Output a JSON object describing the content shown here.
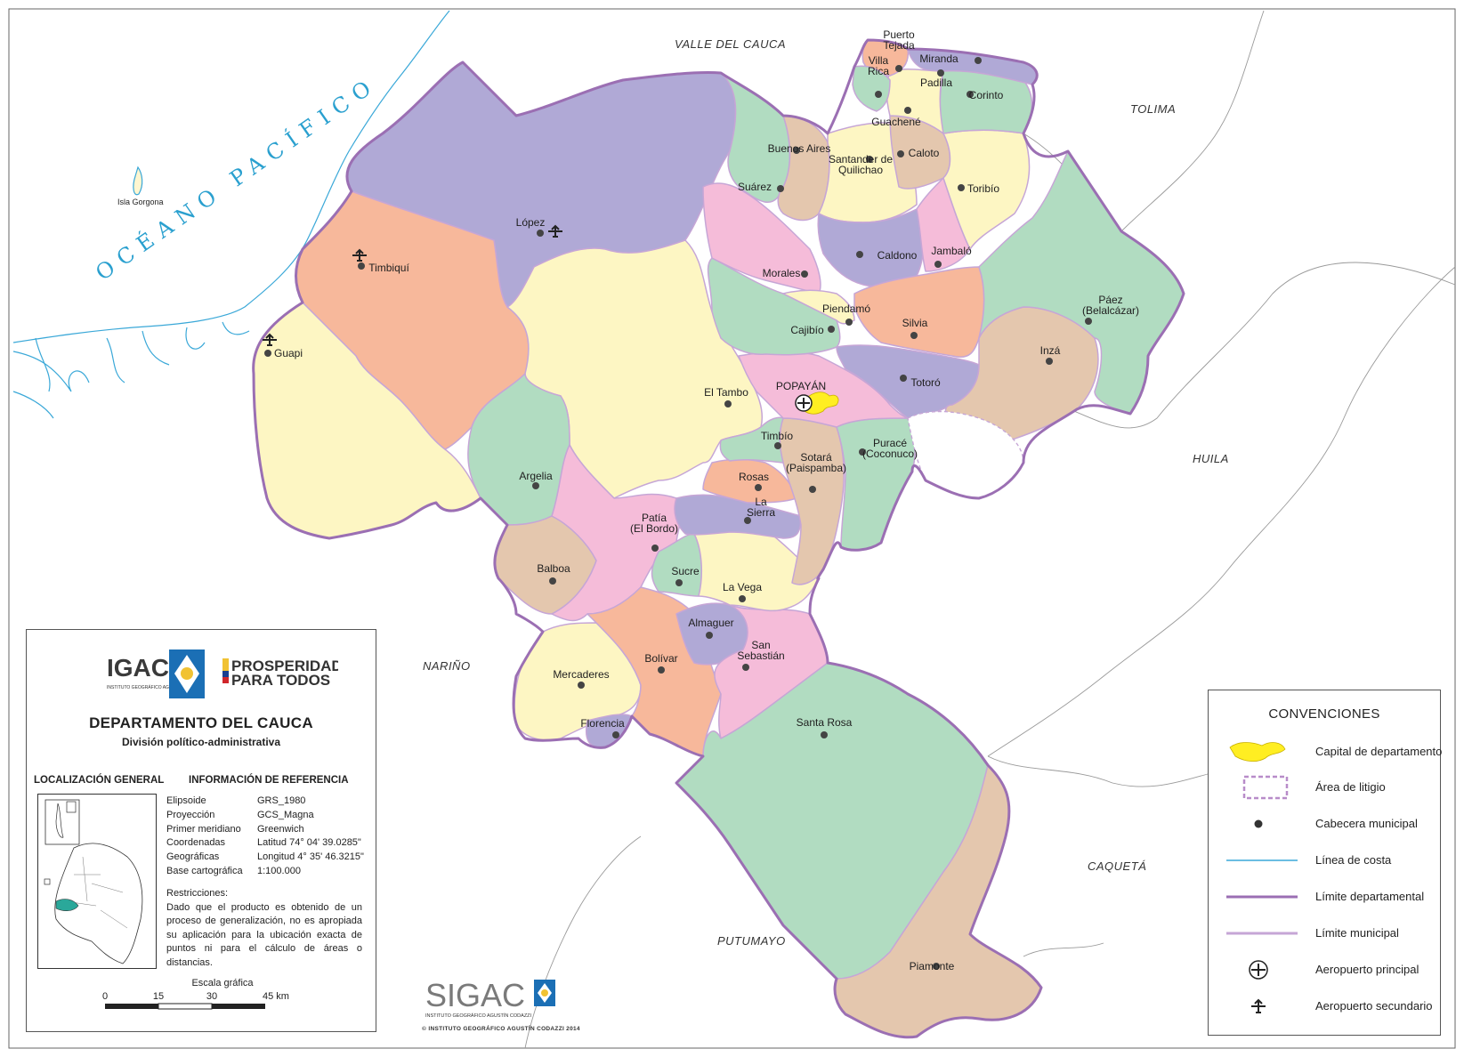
{
  "ocean_label": "OCÉANO PACÍFICO",
  "island_label": "Isla Gorgona",
  "neighbors": {
    "valle": "VALLE DEL CAUCA",
    "tolima": "TOLIMA",
    "huila": "HUILA",
    "narino": "NARIÑO",
    "caqueta": "CAQUETÁ",
    "putumayo": "PUTUMAYO"
  },
  "municipalities": [
    {
      "id": "puerto-tejada",
      "label": [
        "Puerto",
        "Tejada"
      ]
    },
    {
      "id": "miranda",
      "label": [
        "Miranda"
      ]
    },
    {
      "id": "villa-rica",
      "label": [
        "Villa",
        "Rica"
      ]
    },
    {
      "id": "padilla",
      "label": [
        "Padilla"
      ]
    },
    {
      "id": "corinto",
      "label": [
        "Corinto"
      ]
    },
    {
      "id": "guachene",
      "label": [
        "Guachené"
      ]
    },
    {
      "id": "buenos-aires",
      "label": [
        "Buenos Aires"
      ]
    },
    {
      "id": "santander",
      "label": [
        "Santander de",
        "Quilichao"
      ]
    },
    {
      "id": "caloto",
      "label": [
        "Caloto"
      ]
    },
    {
      "id": "suarez",
      "label": [
        "Suárez"
      ]
    },
    {
      "id": "toribio",
      "label": [
        "Toribío"
      ]
    },
    {
      "id": "lopez",
      "label": [
        "López"
      ]
    },
    {
      "id": "timbiqui",
      "label": [
        "Timbiquí"
      ]
    },
    {
      "id": "caldono",
      "label": [
        "Caldono"
      ]
    },
    {
      "id": "jambalo",
      "label": [
        "Jambaló"
      ]
    },
    {
      "id": "morales",
      "label": [
        "Morales"
      ]
    },
    {
      "id": "guapi",
      "label": [
        "Guapi"
      ]
    },
    {
      "id": "piendamo",
      "label": [
        "Piendamó"
      ]
    },
    {
      "id": "cajibio",
      "label": [
        "Cajibío"
      ]
    },
    {
      "id": "silvia",
      "label": [
        "Silvia"
      ]
    },
    {
      "id": "paez",
      "label": [
        "Páez",
        "(Belalcázar)"
      ]
    },
    {
      "id": "inza",
      "label": [
        "Inzá"
      ]
    },
    {
      "id": "totoro",
      "label": [
        "Totoró"
      ]
    },
    {
      "id": "el-tambo",
      "label": [
        "El Tambo"
      ]
    },
    {
      "id": "popayan",
      "label": [
        "POPAYÁN"
      ]
    },
    {
      "id": "timbio",
      "label": [
        "Timbío"
      ]
    },
    {
      "id": "purace",
      "label": [
        "Puracé",
        "(Coconuco)"
      ]
    },
    {
      "id": "argelia",
      "label": [
        "Argelia"
      ]
    },
    {
      "id": "sotara",
      "label": [
        "Sotará",
        "(Paispamba)"
      ]
    },
    {
      "id": "rosas",
      "label": [
        "Rosas"
      ]
    },
    {
      "id": "la-sierra",
      "label": [
        "La",
        "Sierra"
      ]
    },
    {
      "id": "patia",
      "label": [
        "Patía",
        "(El Bordo)"
      ]
    },
    {
      "id": "balboa",
      "label": [
        "Balboa"
      ]
    },
    {
      "id": "sucre",
      "label": [
        "Sucre"
      ]
    },
    {
      "id": "la-vega",
      "label": [
        "La Vega"
      ]
    },
    {
      "id": "almaguer",
      "label": [
        "Almaguer"
      ]
    },
    {
      "id": "bolivar",
      "label": [
        "Bolívar"
      ]
    },
    {
      "id": "san-sebastian",
      "label": [
        "San",
        "Sebastián"
      ]
    },
    {
      "id": "mercaderes",
      "label": [
        "Mercaderes"
      ]
    },
    {
      "id": "florencia",
      "label": [
        "Florencia"
      ]
    },
    {
      "id": "santa-rosa",
      "label": [
        "Santa Rosa"
      ]
    },
    {
      "id": "piamonte",
      "label": [
        "Piamonte"
      ]
    }
  ],
  "info": {
    "igac_logo": "IGAC",
    "igac_sub": "INSTITUTO GEOGRÁFICO AGUSTÍN CODAZZI",
    "prosperidad_line1": "PROSPERIDAD",
    "prosperidad_line2": "PARA TODOS",
    "title": "DEPARTAMENTO DEL CAUCA",
    "subtitle": "División político-administrativa",
    "loc_heading": "LOCALIZACIÓN GENERAL",
    "ref_heading": "INFORMACIÓN DE REFERENCIA",
    "reference": [
      {
        "k": "Elipsoide",
        "v": "GRS_1980"
      },
      {
        "k": "Proyección",
        "v": "GCS_Magna"
      },
      {
        "k": "Primer meridiano",
        "v": "Greenwich"
      },
      {
        "k": "Coordenadas",
        "v": "Latitud 74° 04' 39.0285\""
      },
      {
        "k": "Geográficas",
        "v": "Longitud 4° 35' 46.3215\""
      },
      {
        "k": "Base cartográfica",
        "v": "1:100.000"
      }
    ],
    "restr_heading": "Restricciones:",
    "restr_text": "Dado que el producto es obtenido de un proceso de generalización, no es apropiada su aplicación para la ubicación exacta de puntos ni para el cálculo de áreas o distancias.",
    "scale_title": "Escala gráfica",
    "scale_ticks": [
      "0",
      "15",
      "30",
      "45 km"
    ]
  },
  "legend": {
    "title": "CONVENCIONES",
    "items": [
      {
        "id": "capital",
        "label": "Capital de departamento"
      },
      {
        "id": "litigio",
        "label": "Área de litigio"
      },
      {
        "id": "cabecera",
        "label": "Cabecera municipal"
      },
      {
        "id": "costa",
        "label": "Línea de costa"
      },
      {
        "id": "lim-dep",
        "label": "Límite departamental"
      },
      {
        "id": "lim-mun",
        "label": "Límite municipal"
      },
      {
        "id": "aero-pri",
        "label": "Aeropuerto principal"
      },
      {
        "id": "aero-sec",
        "label": "Aeropuerto secundario"
      }
    ]
  },
  "footer": {
    "sigac": "SIGAC",
    "sigac_sub": "INSTITUTO GEOGRÁFICO AGUSTÍN CODAZZI",
    "copyright": "© INSTITUTO GEOGRÁFICO AGUSTÍN CODAZZI 2014"
  },
  "colors": {
    "sea": "#ffffff",
    "land_out": "#ffffff",
    "orange": "#f7b89b",
    "yellow": "#fdf6c3",
    "lavender": "#b0a9d6",
    "green": "#b1dcc1",
    "pink": "#f5bcd9",
    "tan": "#e4c7ae",
    "capital": "#ffee22",
    "dept_border": "#9b6fb3",
    "mun_border": "#c6a6d6",
    "coast": "#3aa8d8"
  }
}
